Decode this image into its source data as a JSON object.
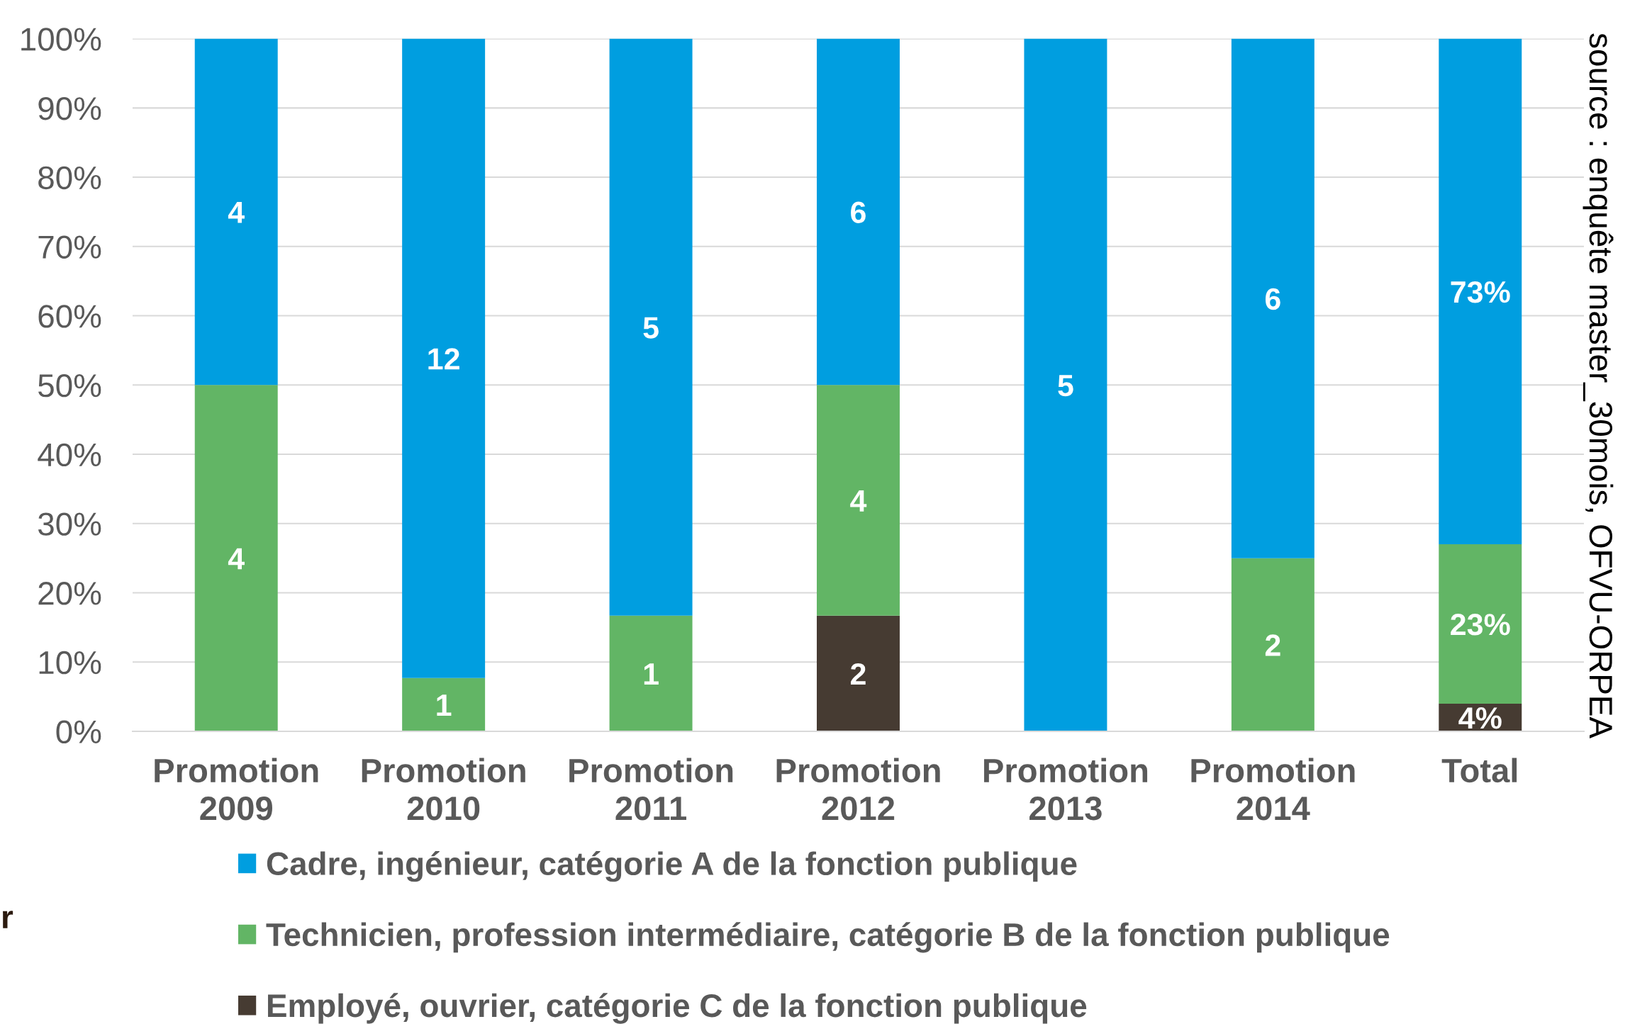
{
  "chart_data": {
    "type": "bar",
    "stacked": true,
    "categories": [
      "Promotion\n2009",
      "Promotion\n2010",
      "Promotion\n2011",
      "Promotion\n2012",
      "Promotion\n2013",
      "Promotion\n2014",
      "Total"
    ],
    "series": [
      {
        "name": "Employé, ouvrier, catégorie C de la fonction publique",
        "color": "#463b32",
        "values": [
          null,
          null,
          null,
          16.7,
          null,
          null,
          4
        ],
        "value_labels": [
          null,
          null,
          null,
          null,
          null,
          null,
          "4%"
        ]
      },
      {
        "name": "Technicien, profession intermédiaire, catégorie B de la fonction publique",
        "color": "#62b565",
        "values": [
          50,
          7.7,
          16.7,
          33.3,
          null,
          25,
          23
        ],
        "value_labels": [
          null,
          null,
          null,
          null,
          null,
          null,
          "23%"
        ]
      },
      {
        "name": "Cadre, ingénieur, catégorie A de la fonction publique",
        "color": "#009ee0",
        "values": [
          50,
          92.3,
          83.3,
          50,
          100,
          75,
          73
        ],
        "value_labels": [
          null,
          null,
          null,
          null,
          null,
          null,
          "73%"
        ]
      }
    ],
    "ylim": [
      0,
      100
    ],
    "yticks": [
      {
        "value": 0,
        "label": "0%"
      },
      {
        "value": 10,
        "label": "10%"
      },
      {
        "value": 20,
        "label": "20%"
      },
      {
        "value": 30,
        "label": "30%"
      },
      {
        "value": 40,
        "label": "40%"
      },
      {
        "value": 50,
        "label": "50%"
      },
      {
        "value": 60,
        "label": "60%"
      },
      {
        "value": 70,
        "label": "70%"
      },
      {
        "value": 80,
        "label": "80%"
      },
      {
        "value": 90,
        "label": "90%"
      },
      {
        "value": 100,
        "label": "100%"
      }
    ],
    "grid": "y",
    "legend": "bottom",
    "annotations": [
      "source : enquête master_30mois, OFVU-ORPEA",
      "r",
      "4",
      "4",
      "12",
      "1",
      "5",
      "1",
      "6",
      "4",
      "2",
      "5",
      "6",
      "2"
    ]
  }
}
